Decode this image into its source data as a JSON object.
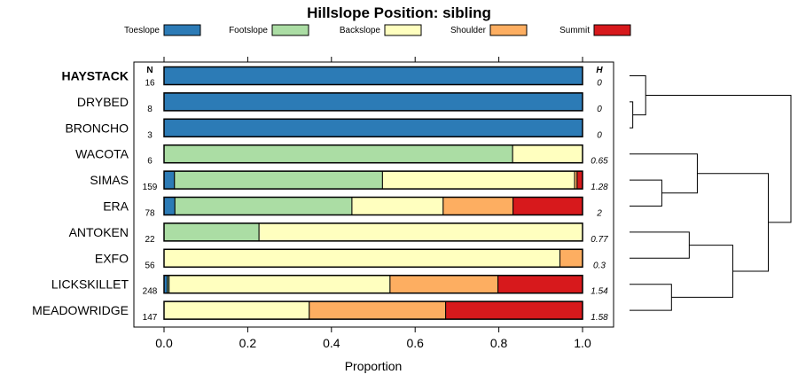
{
  "chart_data": {
    "type": "bar",
    "orientation": "horizontal",
    "stacked": true,
    "title": "Hillslope Position: sibling",
    "xlabel": "Proportion",
    "ylabel": "",
    "xlim": [
      0,
      1
    ],
    "x_ticks": [
      "0.0",
      "0.2",
      "0.4",
      "0.6",
      "0.8",
      "1.0"
    ],
    "legend": {
      "placement": "top",
      "entries": [
        {
          "name": "Toeslope",
          "color": "#2C7BB6"
        },
        {
          "name": "Footslope",
          "color": "#ABDDA4"
        },
        {
          "name": "Backslope",
          "color": "#FFFFBF"
        },
        {
          "name": "Shoulder",
          "color": "#FDAE61"
        },
        {
          "name": "Summit",
          "color": "#D7191C"
        }
      ]
    },
    "n_header": "N",
    "h_header": "H",
    "categories": [
      {
        "name": "HAYSTACK",
        "highlight": true,
        "n": "16",
        "h": "0",
        "values": [
          1.0,
          0,
          0,
          0,
          0
        ]
      },
      {
        "name": "DRYBED",
        "highlight": false,
        "n": "8",
        "h": "0",
        "values": [
          1.0,
          0,
          0,
          0,
          0
        ]
      },
      {
        "name": "BRONCHO",
        "highlight": false,
        "n": "3",
        "h": "0",
        "values": [
          1.0,
          0,
          0,
          0,
          0
        ]
      },
      {
        "name": "WACOTA",
        "highlight": false,
        "n": "6",
        "h": "0.65",
        "values": [
          0,
          0.833,
          0.167,
          0,
          0
        ]
      },
      {
        "name": "SIMAS",
        "highlight": false,
        "n": "159",
        "h": "1.28",
        "values": [
          0.025,
          0.497,
          0.459,
          0.006,
          0.013
        ]
      },
      {
        "name": "ERA",
        "highlight": false,
        "n": "78",
        "h": "2",
        "values": [
          0.026,
          0.423,
          0.218,
          0.167,
          0.166
        ]
      },
      {
        "name": "ANTOKEN",
        "highlight": false,
        "n": "22",
        "h": "0.77",
        "values": [
          0,
          0.227,
          0.773,
          0,
          0
        ]
      },
      {
        "name": "EXFO",
        "highlight": false,
        "n": "56",
        "h": "0.3",
        "values": [
          0,
          0,
          0.946,
          0.054,
          0
        ]
      },
      {
        "name": "LICKSKILLET",
        "highlight": false,
        "n": "248",
        "h": "1.54",
        "values": [
          0.008,
          0.004,
          0.528,
          0.258,
          0.202
        ]
      },
      {
        "name": "MEADOWRIDGE",
        "highlight": false,
        "n": "147",
        "h": "1.58",
        "values": [
          0,
          0,
          0.347,
          0.326,
          0.327
        ]
      }
    ],
    "dendrogram": {
      "merges": [
        {
          "a": "DRYBED",
          "b": "BRONCHO",
          "height": 0.02
        },
        {
          "a": "HAYSTACK",
          "b": "DRYBED+BRONCHO",
          "height": 0.1
        },
        {
          "a": "SIMAS",
          "b": "ERA",
          "height": 0.2
        },
        {
          "a": "WACOTA",
          "b": "SIMAS+ERA",
          "height": 0.42
        },
        {
          "a": "ANTOKEN",
          "b": "EXFO",
          "height": 0.37
        },
        {
          "a": "LICKSKILLET",
          "b": "MEADOWRIDGE",
          "height": 0.26
        },
        {
          "a": "ANTOKEN+EXFO",
          "b": "LICKSKILLET+MEADOWRIDGE",
          "height": 0.64
        },
        {
          "a": "WACOTA+SIMAS+ERA",
          "b": "ANTOKEN+EXFO+LICKSKILLET+MEADOWRIDGE",
          "height": 0.86
        },
        {
          "a": "HAYSTACK+DRYBED+BRONCHO",
          "b": "REST",
          "height": 1.0
        }
      ]
    }
  }
}
